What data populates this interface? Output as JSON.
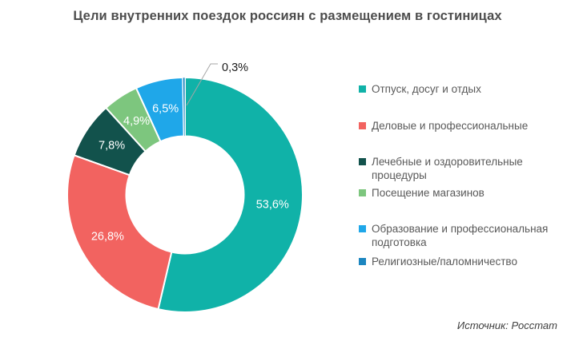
{
  "chart_data": {
    "type": "pie",
    "subtype": "donut",
    "title": "Цели внутренних поездок россиян с размещением в гостиницах",
    "legend_position": "right",
    "source": "Источник: Росстат",
    "label_format": "percent-comma-decimal",
    "series": [
      {
        "name": "Отпуск, досуг и отдых",
        "value": 53.6,
        "label": "53,6%",
        "color": "#10B2A8"
      },
      {
        "name": "Деловые и профессиональные",
        "value": 26.8,
        "label": "26,8%",
        "color": "#F26360"
      },
      {
        "name": "Лечебные и оздоровительные процедуры",
        "value": 7.8,
        "label": "7,8%",
        "color": "#12524C"
      },
      {
        "name": "Посещение магазинов",
        "value": 4.9,
        "label": "4,9%",
        "color": "#7DC67E"
      },
      {
        "name": "Образование и профессиональная подготовка",
        "value": 6.5,
        "label": "6,5%",
        "color": "#1FA7E9"
      },
      {
        "name": "Религиозные/паломничество",
        "value": 0.3,
        "label": "0,3%",
        "color": "#1C86C0"
      }
    ]
  }
}
